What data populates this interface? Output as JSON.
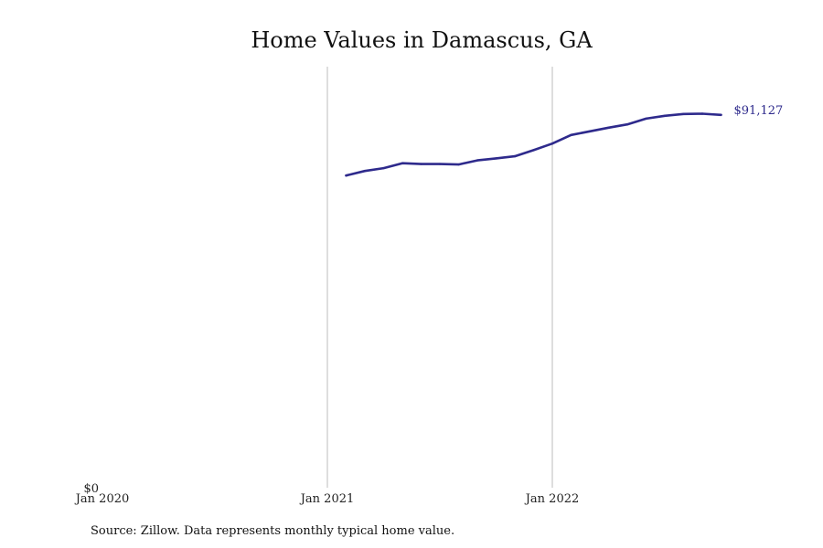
{
  "chart_data": {
    "type": "line",
    "title": "Home Values in Damascus, GA",
    "xlabel": "",
    "ylabel": "",
    "x_ticks": [
      "Jan 2020",
      "Jan 2021",
      "Jan 2022"
    ],
    "y_ticks": [
      "$0"
    ],
    "ylim": [
      0,
      100000
    ],
    "grid": "vertical lines at year ticks",
    "legend": "none",
    "series": [
      {
        "color": "#2e2a8c",
        "points": [
          {
            "x": "2021-02",
            "y": 76300
          },
          {
            "x": "2021-03",
            "y": 77400
          },
          {
            "x": "2021-04",
            "y": 78100
          },
          {
            "x": "2021-05",
            "y": 79300
          },
          {
            "x": "2021-06",
            "y": 79100
          },
          {
            "x": "2021-07",
            "y": 79100
          },
          {
            "x": "2021-08",
            "y": 79000
          },
          {
            "x": "2021-09",
            "y": 80000
          },
          {
            "x": "2021-10",
            "y": 80500
          },
          {
            "x": "2021-11",
            "y": 81000
          },
          {
            "x": "2021-12",
            "y": 82500
          },
          {
            "x": "2022-01",
            "y": 84100
          },
          {
            "x": "2022-02",
            "y": 86200
          },
          {
            "x": "2022-03",
            "y": 87100
          },
          {
            "x": "2022-04",
            "y": 88000
          },
          {
            "x": "2022-05",
            "y": 88800
          },
          {
            "x": "2022-06",
            "y": 90200
          },
          {
            "x": "2022-07",
            "y": 90900
          },
          {
            "x": "2022-08",
            "y": 91350
          },
          {
            "x": "2022-09",
            "y": 91400
          },
          {
            "x": "2022-10",
            "y": 91127
          }
        ]
      }
    ],
    "end_label": "$91,127",
    "source_note": "Source: Zillow. Data represents monthly typical home value."
  }
}
